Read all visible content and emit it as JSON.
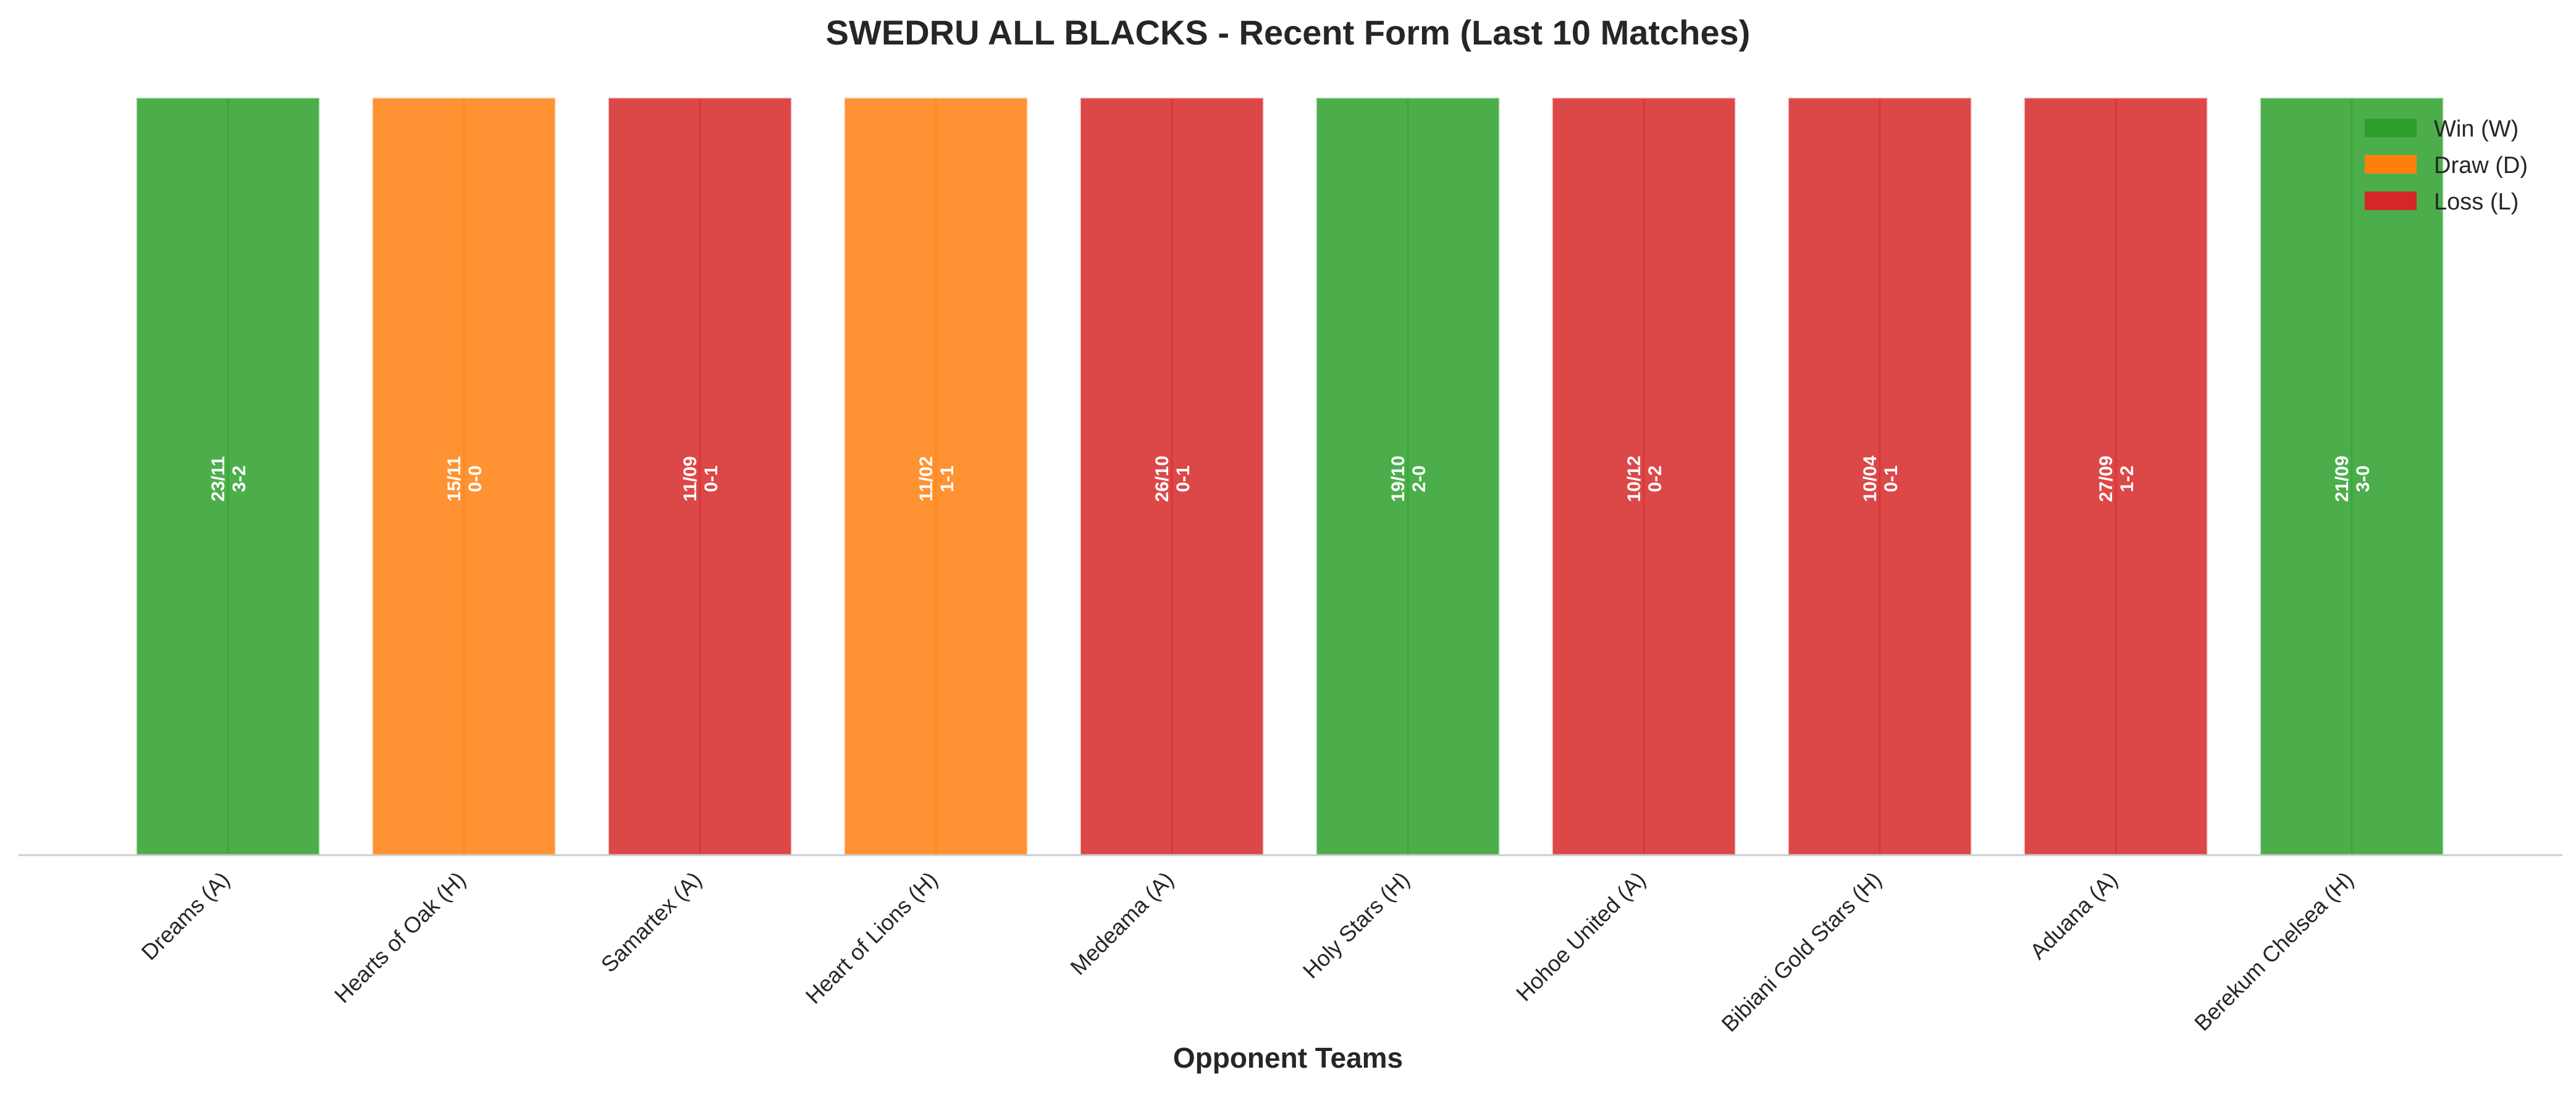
{
  "chart_data": {
    "type": "bar",
    "title": "SWEDRU ALL BLACKS - Recent Form (Last 10 Matches)",
    "xlabel": "Opponent Teams",
    "ylabel": "",
    "ylim": [
      0,
      1
    ],
    "grid": false,
    "legend_position": "top-right",
    "categories": [
      "Dreams (A)",
      "Hearts of Oak (H)",
      "Samartex (A)",
      "Heart of Lions (H)",
      "Medeama (A)",
      "Holy Stars (H)",
      "Hohoe United (A)",
      "Bibiani Gold Stars (H)",
      "Aduana (A)",
      "Berekum Chelsea (H)"
    ],
    "values": [
      1,
      1,
      1,
      1,
      1,
      1,
      1,
      1,
      1,
      1
    ],
    "results": [
      "W",
      "D",
      "L",
      "D",
      "L",
      "W",
      "L",
      "L",
      "L",
      "W"
    ],
    "dates": [
      "23/11",
      "15/11",
      "11/09",
      "11/02",
      "26/10",
      "19/10",
      "10/12",
      "10/04",
      "27/09",
      "21/09"
    ],
    "scores": [
      "3-2",
      "0-0",
      "0-1",
      "1-1",
      "0-1",
      "2-0",
      "0-2",
      "0-1",
      "1-2",
      "3-0"
    ],
    "legend": [
      {
        "key": "W",
        "label": "Win (W)"
      },
      {
        "key": "D",
        "label": "Draw (D)"
      },
      {
        "key": "L",
        "label": "Loss (L)"
      }
    ],
    "colors": {
      "W": "#2ca02c",
      "D": "#ff7f0e",
      "L": "#d62728"
    }
  }
}
